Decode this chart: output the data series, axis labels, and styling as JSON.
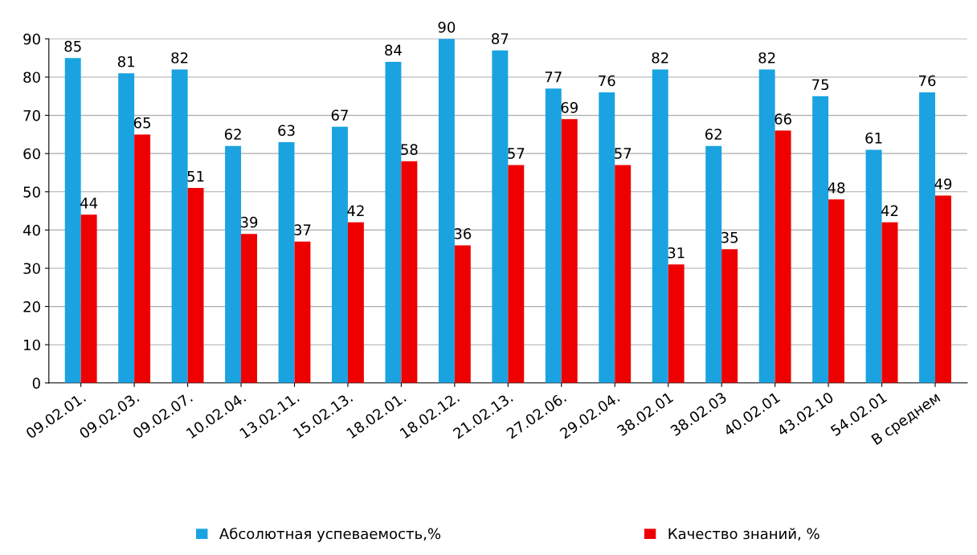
{
  "chart_data": {
    "type": "bar",
    "categories": [
      "09.02.01.",
      "09.02.03.",
      "09.02.07.",
      "10.02.04.",
      "13.02.11.",
      "15.02.13.",
      "18.02.01.",
      "18.02.12.",
      "21.02.13.",
      "27.02.06.",
      "29.02.04.",
      "38.02.01",
      "38.02.03",
      "40.02.01",
      "43.02.10",
      "54.02.01",
      "В среднем"
    ],
    "series": [
      {
        "name": "Абсолютная успеваемость,%",
        "color": "#1aa3e0",
        "values": [
          85,
          81,
          82,
          62,
          63,
          67,
          84,
          90,
          87,
          77,
          76,
          82,
          62,
          82,
          75,
          61,
          76
        ]
      },
      {
        "name": "Качество знаний, %",
        "color": "#ee0000",
        "values": [
          44,
          65,
          51,
          39,
          37,
          42,
          58,
          36,
          57,
          69,
          57,
          31,
          35,
          66,
          48,
          42,
          49
        ]
      }
    ],
    "ylim": [
      0,
      90
    ],
    "yticks": [
      0,
      10,
      20,
      30,
      40,
      50,
      60,
      70,
      80,
      90
    ],
    "grid": "y",
    "data_labels": true,
    "legend": "bottom"
  }
}
